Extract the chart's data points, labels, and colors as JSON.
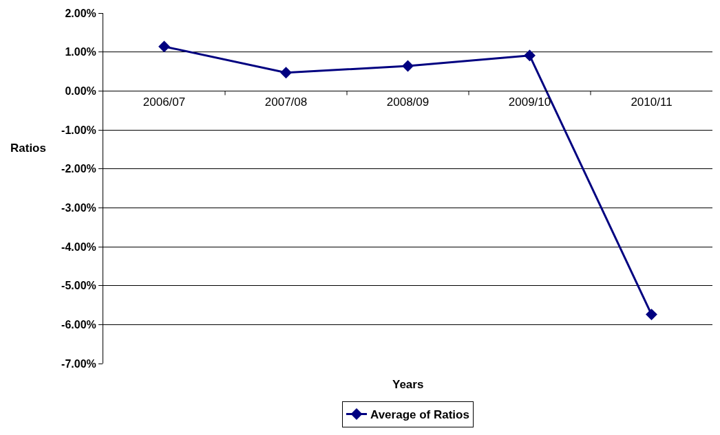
{
  "chart_data": {
    "type": "line",
    "xlabel": "Years",
    "ylabel": "Ratios",
    "categories": [
      "2006/07",
      "2007/08",
      "2008/09",
      "2009/10",
      "2010/11"
    ],
    "series": [
      {
        "name": "Average of Ratios",
        "color": "#000080",
        "values": [
          1.14,
          0.47,
          0.64,
          0.91,
          -5.74
        ]
      }
    ],
    "ylim": [
      -7,
      2
    ],
    "yticks": [
      {
        "value": -7,
        "label": "-7.00%"
      },
      {
        "value": -6,
        "label": "-6.00%"
      },
      {
        "value": -5,
        "label": "-5.00%"
      },
      {
        "value": -4,
        "label": "-4.00%"
      },
      {
        "value": -3,
        "label": "-3.00%"
      },
      {
        "value": -2,
        "label": "-2.00%"
      },
      {
        "value": -1,
        "label": "-1.00%"
      },
      {
        "value": 0,
        "label": "0.00%"
      },
      {
        "value": 1,
        "label": "1.00%"
      },
      {
        "value": 2,
        "label": "2.00%"
      }
    ],
    "grid": "y",
    "legend": "bottom",
    "marker": "diamond",
    "line_style": "solid"
  }
}
